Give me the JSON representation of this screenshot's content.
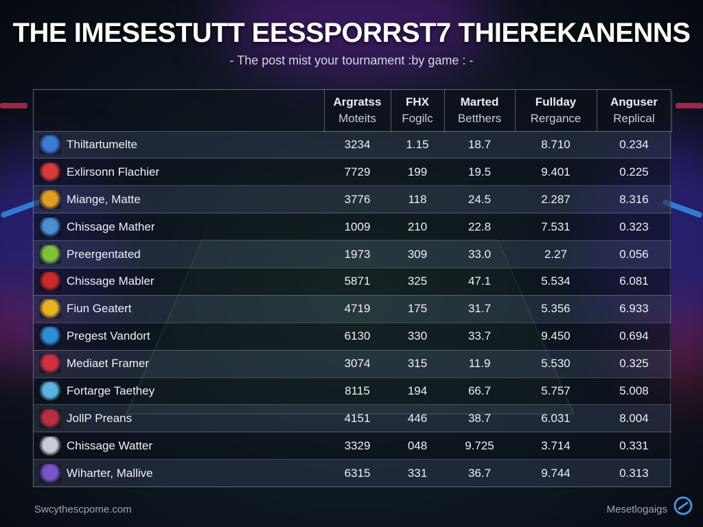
{
  "title": "THE IMESESTUTT EESSPORRST7 THIEREKANENNS",
  "subtitle": "- The post mist your tournament :by game : -",
  "table": {
    "columns": [
      {
        "line1": "Argratss",
        "line2": "Moteits"
      },
      {
        "line1": "FHX",
        "line2": "Fogilc"
      },
      {
        "line1": "Marted",
        "line2": "Betthers"
      },
      {
        "line1": "Fullday",
        "line2": "Rergance"
      },
      {
        "line1": "Anguser",
        "line2": "Replical"
      }
    ],
    "rows": [
      {
        "team": "Thiltartumelte",
        "logo_color": "#3a7bd5",
        "values": [
          "3234",
          "1.15",
          "18.7",
          "8.710",
          "0.234"
        ]
      },
      {
        "team": "Exlirsonn Flachier",
        "logo_color": "#d63a3a",
        "values": [
          "7729",
          "199",
          "19.5",
          "9.401",
          "0.225"
        ]
      },
      {
        "team": "Miange, Matte",
        "logo_color": "#e0a020",
        "values": [
          "3776",
          "118",
          "24.5",
          "2.287",
          "8.316"
        ]
      },
      {
        "team": "Chissage Mather",
        "logo_color": "#4a8fd0",
        "values": [
          "1009",
          "210",
          "22.8",
          "7.531",
          "0.323"
        ]
      },
      {
        "team": "Preergentated",
        "logo_color": "#7fc23a",
        "values": [
          "1973",
          "309",
          "33.0",
          "2.27",
          "0.056"
        ]
      },
      {
        "team": "Chissage Mabler",
        "logo_color": "#c92a2a",
        "values": [
          "5871",
          "325",
          "47.1",
          "5.534",
          "6.081"
        ]
      },
      {
        "team": "Fiun Geatert",
        "logo_color": "#e6b422",
        "values": [
          "4719",
          "175",
          "31.7",
          "5.356",
          "6.933"
        ]
      },
      {
        "team": "Pregest Vandort",
        "logo_color": "#2a8fd6",
        "values": [
          "6130",
          "330",
          "33.7",
          "9.450",
          "0.694"
        ]
      },
      {
        "team": "Mediaet Framer",
        "logo_color": "#d03040",
        "values": [
          "3074",
          "315",
          "11.9",
          "5.530",
          "0.325"
        ]
      },
      {
        "team": "Fortarge Taethey",
        "logo_color": "#5ab4e0",
        "values": [
          "8115",
          "194",
          "66.7",
          "5.757",
          "5.008"
        ]
      },
      {
        "team": "JollP Preans",
        "logo_color": "#b83040",
        "values": [
          "4151",
          "446",
          "38.7",
          "6.031",
          "8.004"
        ]
      },
      {
        "team": "Chissage Watter",
        "logo_color": "#c8ccd4",
        "values": [
          "3329",
          "048",
          "9.725",
          "3.714",
          "0.331"
        ]
      },
      {
        "team": "Wiharter, Mallive",
        "logo_color": "#7a55c8",
        "values": [
          "6315",
          "331",
          "36.7",
          "9.744",
          "0.313"
        ]
      }
    ]
  },
  "footer": {
    "left": "Swcythescpome.com",
    "right": "Mesetlogaigs"
  }
}
